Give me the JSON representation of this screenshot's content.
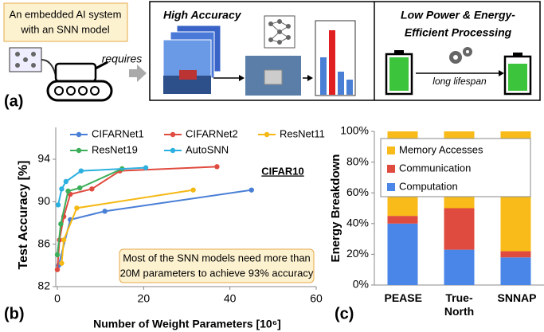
{
  "diagram": {
    "system_box": [
      "An embedded AI system",
      "with an SNN model"
    ],
    "requires": "requires",
    "panel_label": "(a)",
    "high_accuracy": "High Accuracy",
    "low_power": [
      "Low Power & Energy-",
      "Efficient Processing"
    ],
    "lifespan": "long lifespan"
  },
  "chart_data": [
    {
      "type": "line",
      "panel_label": "(b)",
      "xlabel": "Number of Weight Parameters [10⁶]",
      "ylabel": "Test Accuracy [%]",
      "annotation": "CIFAR10",
      "note": [
        "Most of the SNN models need more than",
        "20M parameters to achieve 93% accuracy"
      ],
      "xlim": [
        0,
        60
      ],
      "xticks": [
        0,
        20,
        40,
        60
      ],
      "ylim": [
        82,
        97
      ],
      "yticks": [
        82,
        86,
        90,
        94
      ],
      "series": [
        {
          "name": "CIFARNet1",
          "color": "#4a7fd6",
          "x": [
            0.3,
            3,
            11,
            45
          ],
          "values": [
            84.0,
            88.3,
            89.1,
            91.1
          ]
        },
        {
          "name": "CIFARNet2",
          "color": "#e04b3f",
          "x": [
            0,
            0.5,
            1.5,
            3,
            8,
            14.5,
            37
          ],
          "values": [
            83.6,
            86.4,
            88.6,
            90.7,
            91.2,
            92.9,
            93.3
          ]
        },
        {
          "name": "ResNet11",
          "color": "#f5b915",
          "x": [
            1,
            1.5,
            4.5,
            31.5
          ],
          "values": [
            84.2,
            86.4,
            89.4,
            91.1
          ]
        },
        {
          "name": "ResNet19",
          "color": "#3cae59",
          "x": [
            0,
            0.8,
            2.5,
            5.2,
            15
          ],
          "values": [
            85.0,
            87.9,
            91.0,
            91.3,
            93.1
          ]
        },
        {
          "name": "AutoSNN",
          "color": "#2cb0e0",
          "x": [
            0.2,
            1,
            2,
            5.5,
            20.5
          ],
          "values": [
            89.7,
            91.2,
            91.9,
            92.9,
            93.2
          ]
        }
      ]
    },
    {
      "type": "stacked_bar",
      "panel_label": "(c)",
      "ylabel": "Energy Breakdown",
      "categories": [
        "PEASE",
        "True-North",
        "SNNAP"
      ],
      "ylim": [
        0,
        100
      ],
      "yticks": [
        {
          "value": 0,
          "label": "0%"
        },
        {
          "value": 20,
          "label": "20%"
        },
        {
          "value": 40,
          "label": "40%"
        },
        {
          "value": 60,
          "label": "60%"
        },
        {
          "value": 80,
          "label": "80%"
        },
        {
          "value": 100,
          "label": "100%"
        }
      ],
      "series": [
        {
          "name": "Computation",
          "color": "#4a86e8",
          "values": [
            40,
            23,
            18
          ]
        },
        {
          "name": "Communication",
          "color": "#e04b3f",
          "values": [
            5,
            27,
            4
          ]
        },
        {
          "name": "Memory Accesses",
          "color": "#f9bb1a",
          "values": [
            55,
            50,
            78
          ]
        }
      ]
    }
  ]
}
